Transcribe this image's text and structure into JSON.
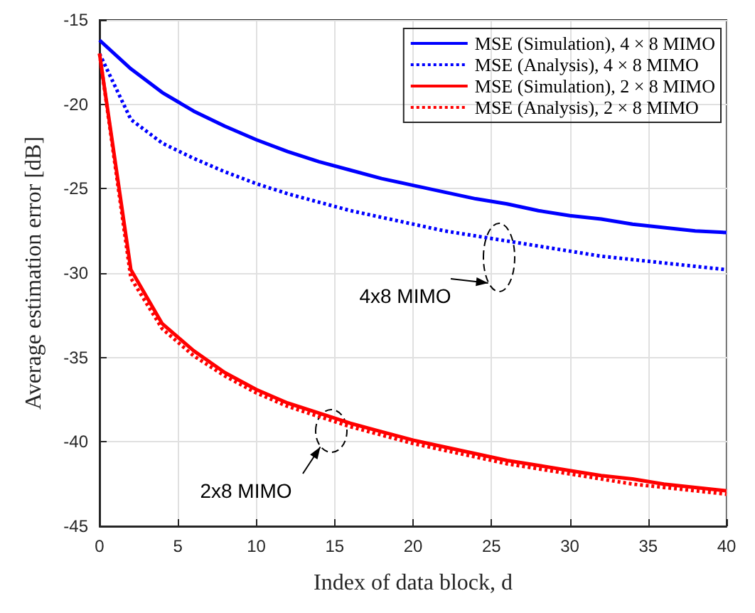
{
  "chart_data": {
    "type": "line",
    "xlabel": "Index of data block, d",
    "ylabel": "Average estimation error [dB]",
    "x": [
      0,
      2,
      4,
      6,
      8,
      10,
      12,
      14,
      16,
      18,
      20,
      22,
      24,
      26,
      28,
      30,
      32,
      34,
      36,
      38,
      40
    ],
    "series": [
      {
        "name": "MSE (Simulation), 4 × 8 MIMO",
        "color": "#0000ff",
        "line_style": "solid",
        "values": [
          -16.2,
          -17.9,
          -19.3,
          -20.4,
          -21.3,
          -22.1,
          -22.8,
          -23.4,
          -23.9,
          -24.4,
          -24.8,
          -25.2,
          -25.6,
          -25.9,
          -26.3,
          -26.6,
          -26.8,
          -27.1,
          -27.3,
          -27.5,
          -27.6
        ]
      },
      {
        "name": "MSE (Analysis), 4 × 8 MIMO",
        "color": "#0000ff",
        "line_style": "dotted",
        "values": [
          -17.0,
          -20.9,
          -22.3,
          -23.2,
          -24.0,
          -24.7,
          -25.3,
          -25.8,
          -26.3,
          -26.7,
          -27.1,
          -27.5,
          -27.8,
          -28.1,
          -28.4,
          -28.7,
          -29.0,
          -29.2,
          -29.4,
          -29.6,
          -29.8
        ]
      },
      {
        "name": "MSE (Simulation), 2 × 8 MIMO",
        "color": "#ff0000",
        "line_style": "solid",
        "values": [
          -17.0,
          -29.8,
          -33.0,
          -34.6,
          -35.9,
          -36.9,
          -37.7,
          -38.3,
          -38.9,
          -39.4,
          -39.9,
          -40.3,
          -40.7,
          -41.1,
          -41.4,
          -41.7,
          -42.0,
          -42.2,
          -42.5,
          -42.7,
          -42.9
        ]
      },
      {
        "name": "MSE (Analysis), 2 × 8 MIMO",
        "color": "#ff0000",
        "line_style": "dotted",
        "values": [
          -17.0,
          -30.3,
          -33.3,
          -34.9,
          -36.1,
          -37.1,
          -37.9,
          -38.5,
          -39.1,
          -39.6,
          -40.1,
          -40.5,
          -40.9,
          -41.3,
          -41.6,
          -41.9,
          -42.2,
          -42.5,
          -42.7,
          -42.9,
          -43.1
        ]
      }
    ],
    "xlim": [
      0,
      40
    ],
    "xticks": [
      0,
      5,
      10,
      15,
      20,
      25,
      30,
      35,
      40
    ],
    "ylim": [
      -45,
      -15
    ],
    "yticks": [
      -45,
      -40,
      -35,
      -30,
      -25,
      -20,
      -15
    ],
    "grid": true,
    "legend": "top right",
    "marker": "none",
    "annotations": [
      "4x8 MIMO",
      "2x8 MIMO"
    ]
  }
}
